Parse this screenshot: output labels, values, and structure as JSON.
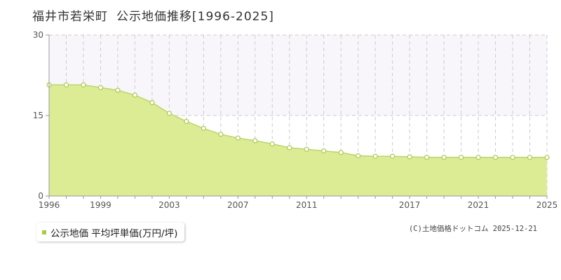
{
  "page": {
    "title_place": "福井市若栄町",
    "title_main": "公示地価推移[1996-2025]",
    "copyright": "(C)土地価格ドットコム 2025-12-21"
  },
  "colors": {
    "area_fill": "#dcec95",
    "line": "#bcd56a",
    "marker_fill": "#ffffff",
    "marker_stroke": "#a9c94f",
    "grid": "#cccccc",
    "axis": "#999999",
    "band": "#f8f6fa",
    "legend_marker": "#a8cc3a"
  },
  "chart_data": {
    "type": "area",
    "title": "福井市若栄町 公示地価推移[1996-2025]",
    "xlabel": "",
    "ylabel": "",
    "xlim": [
      1996,
      2025
    ],
    "ylim": [
      0,
      30
    ],
    "y_ticks": [
      0,
      15,
      30
    ],
    "x_tick_labels": [
      "1996",
      "1999",
      "2003",
      "2007",
      "2011",
      "2017",
      "2021",
      "2025"
    ],
    "grid": true,
    "legend_position": "bottom-left",
    "series": [
      {
        "name": "公示地価 平均坪単価(万円/坪)",
        "x": [
          1996,
          1997,
          1998,
          1999,
          2000,
          2001,
          2002,
          2003,
          2004,
          2005,
          2006,
          2007,
          2008,
          2009,
          2010,
          2011,
          2012,
          2013,
          2014,
          2015,
          2016,
          2017,
          2018,
          2019,
          2020,
          2021,
          2022,
          2023,
          2024,
          2025
        ],
        "values": [
          20.7,
          20.7,
          20.7,
          20.2,
          19.7,
          18.8,
          17.4,
          15.4,
          13.9,
          12.6,
          11.5,
          10.8,
          10.3,
          9.7,
          9.0,
          8.7,
          8.4,
          8.1,
          7.5,
          7.4,
          7.4,
          7.3,
          7.2,
          7.2,
          7.2,
          7.2,
          7.2,
          7.2,
          7.2,
          7.2
        ]
      }
    ]
  }
}
